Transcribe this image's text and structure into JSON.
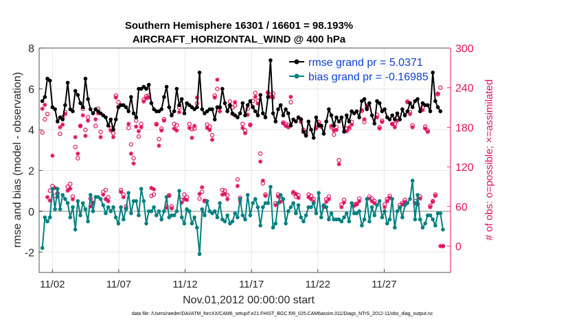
{
  "chart_data": {
    "type": "line",
    "title_line1": "Southern Hemisphere 16301 / 16601 = 98.193%",
    "title_line2": "AIRCRAFT_HORIZONTAL_WIND @ 400 hPa",
    "xlabel": "Nov.01,2012 00:00:00 start",
    "ylabel_left": "rmse and bias (model - observation)",
    "ylabel_right": "# of obs: o=possible; ×=assimilated",
    "footnote": "data file: /Users/raeder/DAI/ATM_forcXX/CAM6_setup/f.e21.FHIST_BGC.f09_025.CAM6assim.011/Diags_NTrS_2012-11/obs_diag_output.nc",
    "x_day_range": [
      0.0,
      31.0
    ],
    "ylim_left": [
      -3,
      8
    ],
    "ylim_right": [
      -40,
      300
    ],
    "grid": true,
    "left_ticks": [
      "-2",
      "0",
      "2",
      "4",
      "6",
      "8"
    ],
    "right_ticks": [
      "0",
      "60",
      "120",
      "180",
      "240",
      "300"
    ],
    "x_ticks": [
      {
        "day": 1,
        "label": "11/02"
      },
      {
        "day": 6,
        "label": "11/07"
      },
      {
        "day": 11,
        "label": "11/12"
      },
      {
        "day": 16,
        "label": "11/17"
      },
      {
        "day": 21,
        "label": "11/22"
      },
      {
        "day": 26,
        "label": "11/27"
      }
    ],
    "zero_line": 0,
    "legend_position": "top-right",
    "legend": [
      {
        "name": "rmse grand pr = 5.0371",
        "color": "#000000"
      },
      {
        "name": "bias grand pr = -0.16985",
        "color": "#008080"
      }
    ],
    "colors": {
      "rmse": "#000000",
      "bias": "#008080",
      "obs": "#e0115f",
      "zero": "#bfbfbf",
      "legend_text": "#0a3ed6"
    },
    "rmse": [
      5.4,
      5.6,
      6.5,
      6.4,
      5.1,
      5.0,
      4.4,
      4.6,
      4.5,
      5.2,
      6.3,
      5.0,
      4.9,
      5.9,
      5.7,
      5.3,
      5.1,
      6.5,
      5.5,
      5.0,
      4.8,
      5.0,
      4.9,
      4.8,
      4.7,
      4.6,
      4.2,
      4.5,
      4.0,
      4.5,
      5.1,
      5.2,
      5.2,
      5.1,
      4.9,
      5.6,
      4.8,
      4.6,
      6.0,
      6.0,
      6.1,
      6.0,
      6.2,
      5.3,
      5.0,
      4.9,
      4.9,
      5.0,
      5.6,
      6.1,
      5.1,
      4.7,
      4.9,
      6.0,
      5.2,
      5.5,
      4.8,
      5.3,
      5.2,
      5.1,
      5.0,
      5.1,
      6.8,
      5.0,
      4.8,
      4.9,
      5.0,
      5.0,
      4.5,
      5.1,
      5.1,
      6.0,
      5.3,
      4.9,
      5.2,
      4.8,
      4.7,
      4.6,
      4.8,
      5.3,
      4.7,
      5.2,
      5.4,
      5.1,
      4.9,
      4.7,
      5.7,
      4.8,
      4.6,
      5.6,
      7.4,
      4.8,
      4.4,
      5.0,
      5.2,
      4.7,
      5.0,
      4.8,
      4.2,
      4.5,
      4.4,
      4.6,
      4.5,
      3.9,
      3.7,
      4.4,
      4.0,
      3.6,
      4.6,
      4.2,
      4.2,
      3.8,
      4.4,
      5.0,
      4.7,
      4.2,
      4.6,
      4.4,
      4.6,
      3.9,
      4.7,
      4.4,
      4.9,
      4.8,
      4.9,
      4.6,
      5.4,
      5.5,
      5.0,
      5.3,
      4.7,
      4.3,
      5.4,
      5.3,
      4.9,
      5.0,
      4.6,
      4.5,
      4.7,
      4.5,
      4.8,
      4.5,
      5.0,
      4.7,
      4.9,
      5.3,
      5.1,
      5.4,
      5.5,
      4.9,
      5.3,
      5.2,
      5.2,
      4.9,
      6.8,
      5.4,
      5.1,
      4.9
    ],
    "bias": [
      -1.8,
      -0.3,
      -0.5,
      -0.3,
      1.1,
      0.1,
      1.1,
      0.1,
      0.8,
      0.6,
      0.4,
      -0.3,
      0.2,
      -0.9,
      0.5,
      -0.2,
      0.4,
      0.1,
      -0.5,
      0.8,
      0.0,
      0.7,
      0.7,
      0.6,
      0.3,
      -0.1,
      0.2,
      0.0,
      0.2,
      -0.3,
      -0.6,
      0.2,
      -0.4,
      0.1,
      0.9,
      -0.1,
      0.5,
      0.5,
      -0.2,
      1.1,
      0.5,
      -0.6,
      0.0,
      0.0,
      0.2,
      -0.2,
      0.0,
      -0.4,
      0.0,
      0.7,
      -0.3,
      -0.2,
      -0.2,
      0.0,
      1.0,
      -0.3,
      -0.6,
      0.1,
      0.0,
      -0.6,
      -0.3,
      -0.8,
      -2.1,
      0.1,
      -0.2,
      0.5,
      0.0,
      -0.1,
      0.0,
      -0.3,
      0.4,
      -0.4,
      -0.5,
      -0.2,
      -0.6,
      -0.5,
      -0.1,
      -0.3,
      0.6,
      -0.2,
      -0.4,
      0.8,
      -0.2,
      0.4,
      0.6,
      0.2,
      -0.7,
      0.2,
      0.4,
      0.4,
      1.2,
      -0.8,
      -0.6,
      0.4,
      0.8,
      0.6,
      -0.6,
      0.0,
      0.2,
      0.4,
      -0.1,
      0.3,
      -0.3,
      -0.5,
      -0.2,
      0.2,
      0.2,
      0.4,
      -0.1,
      0.9,
      -0.3,
      0.3,
      0.2,
      -0.4,
      -0.1,
      -0.4,
      -0.4,
      -0.4,
      -0.5,
      -0.3,
      -0.1,
      -0.5,
      0.4,
      -0.1,
      -0.1,
      0.0,
      -0.7,
      -0.4,
      0.6,
      -0.5,
      0.2,
      -0.2,
      0.3,
      0.5,
      -0.3,
      0.0,
      -0.6,
      -0.4,
      0.6,
      -0.8,
      0.0,
      0.2,
      -0.3,
      0.3,
      0.4,
      0.6,
      1.5,
      -0.4,
      0.8,
      -0.4,
      -0.8,
      -0.6,
      -0.2,
      -0.2,
      -0.4,
      -0.7,
      -0.1,
      -0.1,
      -0.9
    ],
    "obs_possible": [
      172,
      192,
      200,
      84,
      91,
      76,
      80,
      170,
      195,
      203,
      90,
      94,
      75,
      150,
      133,
      182,
      208,
      176,
      195,
      72,
      65,
      182,
      208,
      173,
      82,
      85,
      74,
      178,
      171,
      228,
      218,
      85,
      78,
      60,
      179,
      154,
      133,
      190,
      166,
      185,
      222,
      227,
      228,
      76,
      78,
      185,
      162,
      178,
      192,
      60,
      77,
      60,
      185,
      183,
      210,
      70,
      78,
      74,
      185,
      177,
      178,
      216,
      72,
      82,
      68,
      184,
      181,
      168,
      228,
      238,
      210,
      85,
      84,
      77,
      219,
      210,
      213,
      101,
      73,
      185,
      175,
      208,
      184,
      220,
      232,
      220,
      140,
      95,
      78,
      232,
      229,
      231,
      65,
      78,
      70,
      187,
      185,
      183,
      218,
      80,
      75,
      77,
      192,
      176,
      172,
      78,
      76,
      71,
      180,
      188,
      181,
      61,
      71,
      75,
      180,
      169,
      180,
      130,
      63,
      70,
      178,
      178,
      188,
      63,
      64,
      72,
      205,
      188,
      209,
      75,
      72,
      68,
      199,
      180,
      190,
      63,
      71,
      76,
      185,
      185,
      194,
      62,
      65,
      70,
      219,
      203,
      183,
      68,
      64,
      75,
      210,
      181,
      175,
      61,
      68,
      78,
      230,
      240,
      0
    ],
    "obs_assimilated": [
      208,
      214,
      74,
      69,
      137,
      88,
      75,
      180,
      184,
      200,
      84,
      87,
      71,
      165,
      140,
      182,
      198,
      167,
      190,
      60,
      66,
      192,
      201,
      165,
      78,
      71,
      68,
      175,
      165,
      225,
      211,
      82,
      74,
      57,
      185,
      140,
      125,
      181,
      174,
      180,
      219,
      224,
      225,
      88,
      86,
      184,
      152,
      175,
      190,
      58,
      76,
      57,
      178,
      175,
      203,
      66,
      71,
      70,
      179,
      164,
      182,
      225,
      79,
      89,
      69,
      179,
      176,
      161,
      225,
      252,
      204,
      78,
      79,
      71,
      212,
      200,
      218,
      91,
      68,
      179,
      171,
      199,
      183,
      211,
      226,
      216,
      128,
      99,
      76,
      233,
      226,
      225,
      62,
      75,
      67,
      186,
      182,
      180,
      226,
      82,
      79,
      73,
      188,
      173,
      168,
      74,
      71,
      67,
      178,
      185,
      182,
      59,
      67,
      71,
      182,
      175,
      176,
      124,
      59,
      66,
      174,
      180,
      184,
      61,
      63,
      68,
      206,
      192,
      213,
      72,
      68,
      65,
      195,
      178,
      188,
      59,
      68,
      73,
      185,
      180,
      190,
      58,
      63,
      67,
      218,
      200,
      180,
      65,
      63,
      72,
      206,
      178,
      173,
      59,
      67,
      76,
      231,
      0,
      0
    ]
  }
}
